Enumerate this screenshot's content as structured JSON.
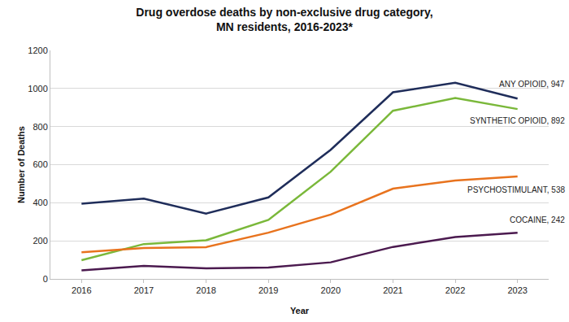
{
  "chart_data": {
    "type": "line",
    "title": "Drug overdose deaths by non-exclusive drug category,\nMN residents, 2016-2023*",
    "x_label": "Year",
    "y_label": "Number of Deaths",
    "categories": [
      "2016",
      "2017",
      "2018",
      "2019",
      "2020",
      "2021",
      "2022",
      "2023"
    ],
    "series": [
      {
        "name": "ANY OPIOID, 947",
        "color": "#1f2d5a",
        "values": [
          395,
          422,
          343,
          428,
          678,
          980,
          1030,
          947
        ]
      },
      {
        "name": "SYNTHETIC OPIOID, 892",
        "color": "#7ab83a",
        "values": [
          98,
          183,
          203,
          310,
          563,
          883,
          950,
          892
        ]
      },
      {
        "name": "PSYCHOSTIMULANT, 538",
        "color": "#e8731e",
        "values": [
          140,
          162,
          167,
          243,
          338,
          474,
          517,
          538
        ]
      },
      {
        "name": "COCAINE, 242",
        "color": "#4b1a4f",
        "values": [
          45,
          68,
          55,
          60,
          87,
          168,
          220,
          242
        ]
      }
    ],
    "ylim": [
      0,
      1200
    ],
    "yticks": [
      0,
      200,
      400,
      600,
      800,
      1000,
      1200
    ],
    "grid": true
  }
}
